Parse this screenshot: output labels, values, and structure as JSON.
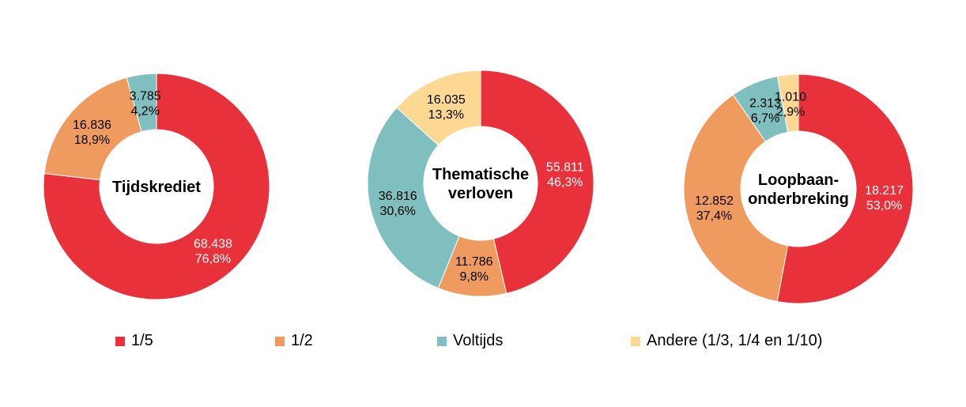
{
  "chart_data": [
    {
      "type": "pie",
      "donut": true,
      "title": "Tijdskrediet",
      "title_lines": [
        "Tijdskrediet"
      ],
      "slices": [
        {
          "category": "1/5",
          "value": 68438,
          "value_label": "68.438",
          "percent_label": "76,8%",
          "percent": 76.8
        },
        {
          "category": "1/2",
          "value": 16836,
          "value_label": "16.836",
          "percent_label": "18,9%",
          "percent": 18.9
        },
        {
          "category": "Voltijds",
          "value": 3785,
          "value_label": "3.785",
          "percent_label": "4,2%",
          "percent": 4.2
        }
      ]
    },
    {
      "type": "pie",
      "donut": true,
      "title": "Thematische verloven",
      "title_lines": [
        "Thematische",
        "verloven"
      ],
      "slices": [
        {
          "category": "1/5",
          "value": 55811,
          "value_label": "55.811",
          "percent_label": "46,3%",
          "percent": 46.3
        },
        {
          "category": "1/2",
          "value": 11786,
          "value_label": "11.786",
          "percent_label": "9,8%",
          "percent": 9.8
        },
        {
          "category": "Voltijds",
          "value": 36816,
          "value_label": "36.816",
          "percent_label": "30,6%",
          "percent": 30.6
        },
        {
          "category": "Andere (1/3, 1/4 en 1/10)",
          "value": 16035,
          "value_label": "16.035",
          "percent_label": "13,3%",
          "percent": 13.3
        }
      ]
    },
    {
      "type": "pie",
      "donut": true,
      "title": "Loopbaan-onderbreking",
      "title_lines": [
        "Loopbaan-",
        "onderbreking"
      ],
      "slices": [
        {
          "category": "1/5",
          "value": 18217,
          "value_label": "18.217",
          "percent_label": "53,0%",
          "percent": 53.0
        },
        {
          "category": "1/2",
          "value": 12852,
          "value_label": "12.852",
          "percent_label": "37,4%",
          "percent": 37.4
        },
        {
          "category": "Voltijds",
          "value": 2313,
          "value_label": "2.313",
          "percent_label": "6,7%",
          "percent": 6.7
        },
        {
          "category": "Andere (1/3, 1/4 en 1/10)",
          "value": 1010,
          "value_label": "1.010",
          "percent_label": "2,9%",
          "percent": 2.9
        }
      ]
    }
  ],
  "legend": [
    {
      "label": "1/5",
      "color": "#E8313A"
    },
    {
      "label": "1/2",
      "color": "#EF9A5E"
    },
    {
      "label": "Voltijds",
      "color": "#80BFBF"
    },
    {
      "label": "Andere (1/3, 1/4 en 1/10)",
      "color": "#FDD893"
    }
  ],
  "colors": {
    "1/5": "#E8313A",
    "1/2": "#EF9A5E",
    "Voltijds": "#80BFBF",
    "Andere (1/3, 1/4 en 1/10)": "#FDD893"
  },
  "legend_position": "bottom"
}
